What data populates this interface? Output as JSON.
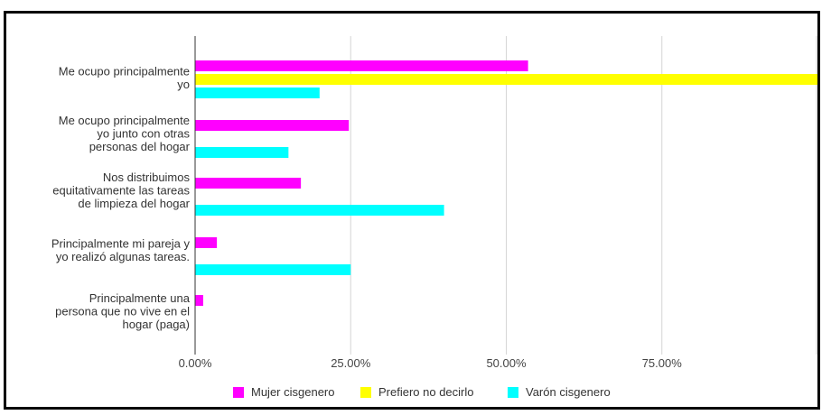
{
  "chart_data": {
    "type": "bar",
    "orientation": "horizontal",
    "categories": [
      [
        "Me ocupo principalmente",
        "yo"
      ],
      [
        "Me ocupo principalmente",
        "yo junto con otras",
        "personas del hogar"
      ],
      [
        "Nos distribuimos",
        "equitativamente las tareas",
        "de limpieza del hogar"
      ],
      [
        "Principalmente mi pareja y",
        "yo realizó algunas tareas."
      ],
      [
        "Principalmente una",
        "persona que no vive en el",
        "hogar (paga)"
      ]
    ],
    "series": [
      {
        "name": "Mujer cisgenero",
        "color": "#ff00ff",
        "values": [
          0.535,
          0.247,
          0.17,
          0.035,
          0.013
        ]
      },
      {
        "name": "Prefiero no decirlo",
        "color": "#ffff00",
        "values": [
          1.0,
          0,
          0,
          0,
          0
        ]
      },
      {
        "name": "Varón cisgenero",
        "color": "#00ffff",
        "values": [
          0.2,
          0.15,
          0.4,
          0.25,
          0
        ]
      }
    ],
    "xticks": [
      0,
      0.25,
      0.5,
      0.75
    ],
    "xtick_labels": [
      "0.00%",
      "25.00%",
      "50.00%",
      "75.00%"
    ],
    "xlim": [
      0,
      1.0
    ],
    "grid": true,
    "legend": "bottom-center"
  }
}
